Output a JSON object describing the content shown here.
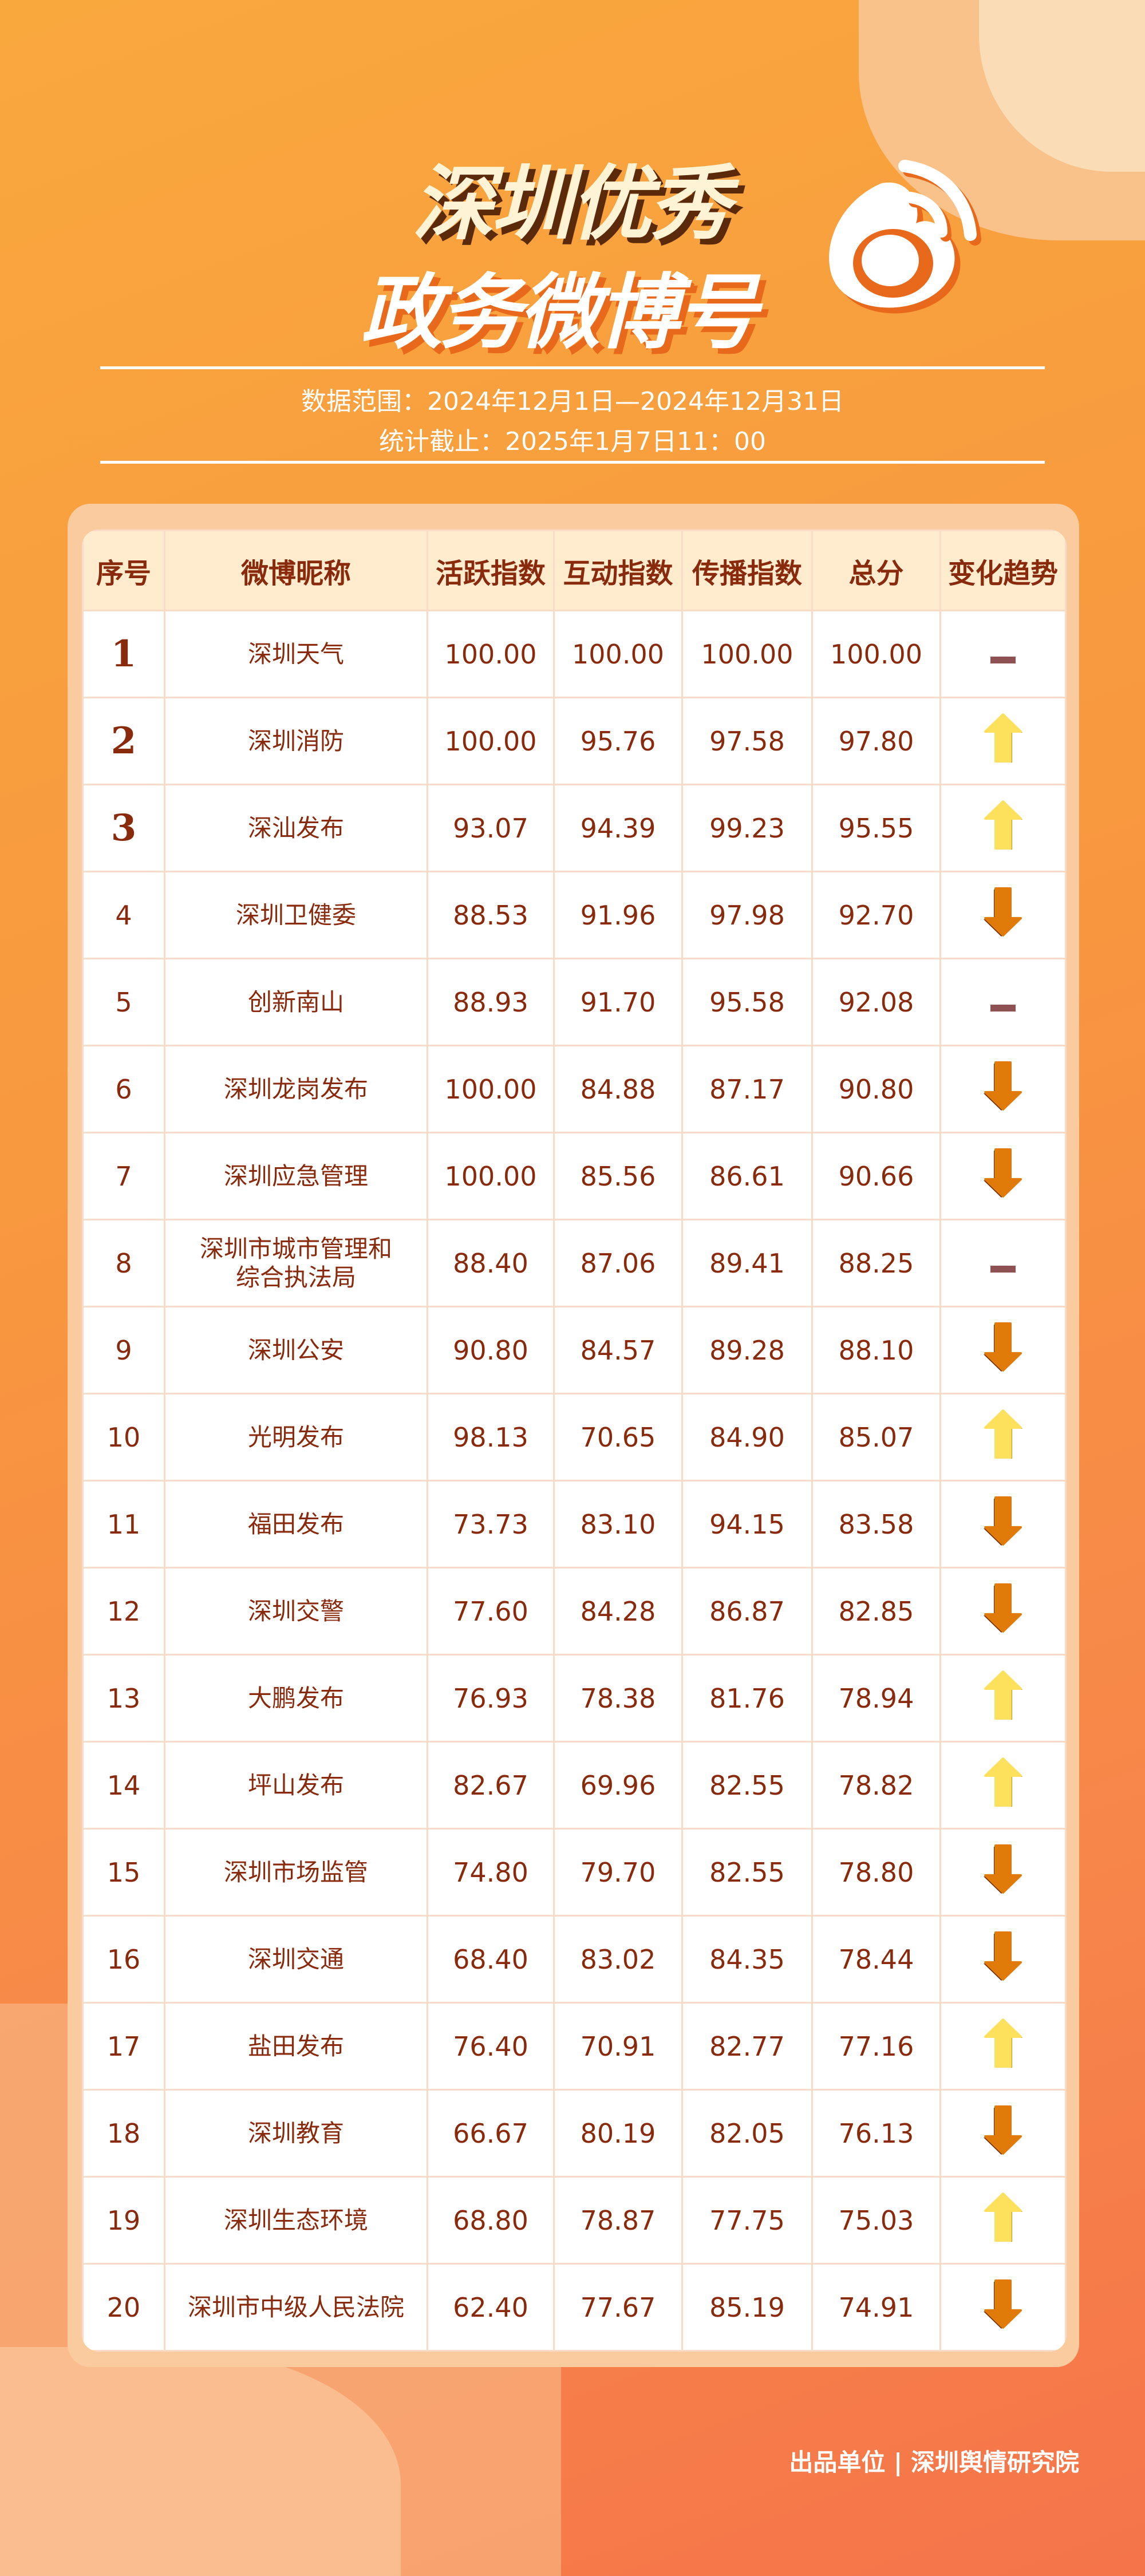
{
  "header": {
    "title_line1": "深圳优秀",
    "title_line2": "政务微博号",
    "logo_icon": "weibo-logo-icon",
    "data_range": "数据范围：2024年12月1日—2024年12月31日",
    "cutoff": "统计截止：2025年1月7日11：00"
  },
  "colors": {
    "text": "#8a2a0c",
    "header_bg": "#ffecce",
    "up": "#fde05c",
    "down": "#e07a08",
    "flat": "#8e5252"
  },
  "table": {
    "columns": [
      "序号",
      "微博昵称",
      "活跃指数",
      "互动指数",
      "传播指数",
      "总分",
      "变化趋势"
    ],
    "rows": [
      [
        "1",
        "深圳天气",
        "100.00",
        "100.00",
        "100.00",
        "100.00",
        "flat"
      ],
      [
        "2",
        "深圳消防",
        "100.00",
        "95.76",
        "97.58",
        "97.80",
        "up"
      ],
      [
        "3",
        "深汕发布",
        "93.07",
        "94.39",
        "99.23",
        "95.55",
        "up"
      ],
      [
        "4",
        "深圳卫健委",
        "88.53",
        "91.96",
        "97.98",
        "92.70",
        "down"
      ],
      [
        "5",
        "创新南山",
        "88.93",
        "91.70",
        "95.58",
        "92.08",
        "flat"
      ],
      [
        "6",
        "深圳龙岗发布",
        "100.00",
        "84.88",
        "87.17",
        "90.80",
        "down"
      ],
      [
        "7",
        "深圳应急管理",
        "100.00",
        "85.56",
        "86.61",
        "90.66",
        "down"
      ],
      [
        "8",
        "深圳市城市管理和综合执法局",
        "88.40",
        "87.06",
        "89.41",
        "88.25",
        "flat"
      ],
      [
        "9",
        "深圳公安",
        "90.80",
        "84.57",
        "89.28",
        "88.10",
        "down"
      ],
      [
        "10",
        "光明发布",
        "98.13",
        "70.65",
        "84.90",
        "85.07",
        "up"
      ],
      [
        "11",
        "福田发布",
        "73.73",
        "83.10",
        "94.15",
        "83.58",
        "down"
      ],
      [
        "12",
        "深圳交警",
        "77.60",
        "84.28",
        "86.87",
        "82.85",
        "down"
      ],
      [
        "13",
        "大鹏发布",
        "76.93",
        "78.38",
        "81.76",
        "78.94",
        "up"
      ],
      [
        "14",
        "坪山发布",
        "82.67",
        "69.96",
        "82.55",
        "78.82",
        "up"
      ],
      [
        "15",
        "深圳市场监管",
        "74.80",
        "79.70",
        "82.55",
        "78.80",
        "down"
      ],
      [
        "16",
        "深圳交通",
        "68.40",
        "83.02",
        "84.35",
        "78.44",
        "down"
      ],
      [
        "17",
        "盐田发布",
        "76.40",
        "70.91",
        "82.77",
        "77.16",
        "up"
      ],
      [
        "18",
        "深圳教育",
        "66.67",
        "80.19",
        "82.05",
        "76.13",
        "down"
      ],
      [
        "19",
        "深圳生态环境",
        "68.80",
        "78.87",
        "77.75",
        "75.03",
        "up"
      ],
      [
        "20",
        "深圳市中级人民法院",
        "62.40",
        "77.67",
        "85.19",
        "74.91",
        "down"
      ]
    ]
  },
  "footer": {
    "text": "出品单位 | 深圳舆情研究院"
  }
}
